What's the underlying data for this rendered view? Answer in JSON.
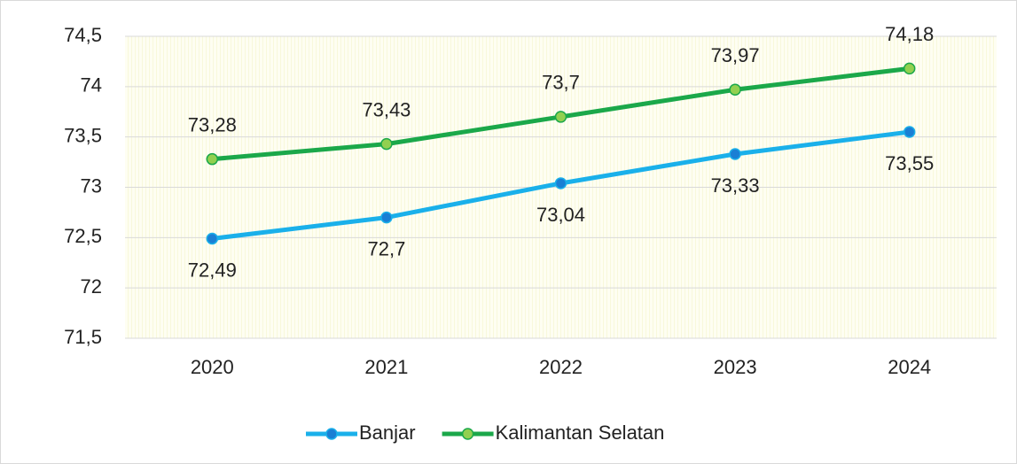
{
  "chart_data": {
    "type": "line",
    "categories": [
      "2020",
      "2021",
      "2022",
      "2023",
      "2024"
    ],
    "series": [
      {
        "name": "Banjar",
        "color": "#1ab0ea",
        "marker_color": "#1a7fd4",
        "values": [
          72.49,
          72.7,
          73.04,
          73.33,
          73.55
        ],
        "value_labels": [
          "72,49",
          "72,7",
          "73,04",
          "73,33",
          "73,55"
        ],
        "label_position": "below"
      },
      {
        "name": "Kalimantan Selatan",
        "color": "#1ba84a",
        "marker_color": "#92d050",
        "values": [
          73.28,
          73.43,
          73.7,
          73.97,
          74.18
        ],
        "value_labels": [
          "73,28",
          "73,43",
          "73,7",
          "73,97",
          "74,18"
        ],
        "label_position": "above"
      }
    ],
    "ylim": [
      71.5,
      74.5
    ],
    "yticks": [
      {
        "value": 71.5,
        "label": "71,5"
      },
      72,
      {
        "value": 72.5,
        "label": "72,5"
      },
      73,
      {
        "value": 73.5,
        "label": "73,5"
      },
      74,
      {
        "value": 74.5,
        "label": "74,5"
      }
    ],
    "grid": true,
    "legend": "bottom"
  }
}
